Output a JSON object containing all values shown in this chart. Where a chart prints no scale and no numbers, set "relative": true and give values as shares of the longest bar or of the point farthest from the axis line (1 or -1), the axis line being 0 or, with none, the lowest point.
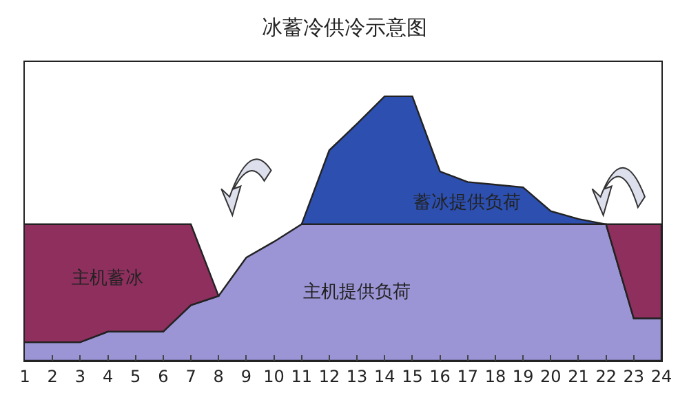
{
  "chart_data": {
    "type": "area",
    "title": "冰蓄冷供冷示意图",
    "relative": true,
    "stacked": true,
    "x": [
      1,
      2,
      3,
      4,
      5,
      6,
      7,
      8,
      9,
      10,
      11,
      12,
      13,
      14,
      15,
      16,
      17,
      18,
      19,
      20,
      21,
      22,
      23,
      24
    ],
    "xlim": [
      1,
      24
    ],
    "xticks": [
      1,
      2,
      3,
      4,
      5,
      6,
      7,
      8,
      9,
      10,
      11,
      12,
      13,
      14,
      15,
      16,
      17,
      18,
      19,
      20,
      21,
      22,
      23,
      24
    ],
    "series": [
      {
        "name": "主机提供负荷",
        "color": "#9b95d6",
        "values": [
          0.07,
          0.07,
          0.07,
          0.11,
          0.11,
          0.11,
          0.21,
          0.245,
          0.39,
          0.45,
          0.516,
          0.516,
          0.516,
          0.516,
          0.516,
          0.516,
          0.516,
          0.516,
          0.516,
          0.516,
          0.516,
          0.516,
          0.16,
          0.16
        ]
      },
      {
        "name": "主机蓄冰",
        "color": "#8e2f5e",
        "values": [
          0.446,
          0.446,
          0.446,
          0.406,
          0.406,
          0.406,
          0.306,
          0,
          null,
          null,
          null,
          null,
          null,
          null,
          null,
          null,
          null,
          null,
          null,
          null,
          null,
          0,
          0.356,
          0.356
        ]
      },
      {
        "name": "蓄冰提供负荷",
        "color": "#2c4fb0",
        "values": [
          null,
          null,
          null,
          null,
          null,
          null,
          null,
          null,
          null,
          null,
          0,
          0.28,
          0.38,
          0.484,
          0.484,
          0.2,
          0.16,
          0.15,
          0.14,
          0.05,
          0.02,
          0,
          null,
          null
        ]
      }
    ],
    "legend": false
  }
}
